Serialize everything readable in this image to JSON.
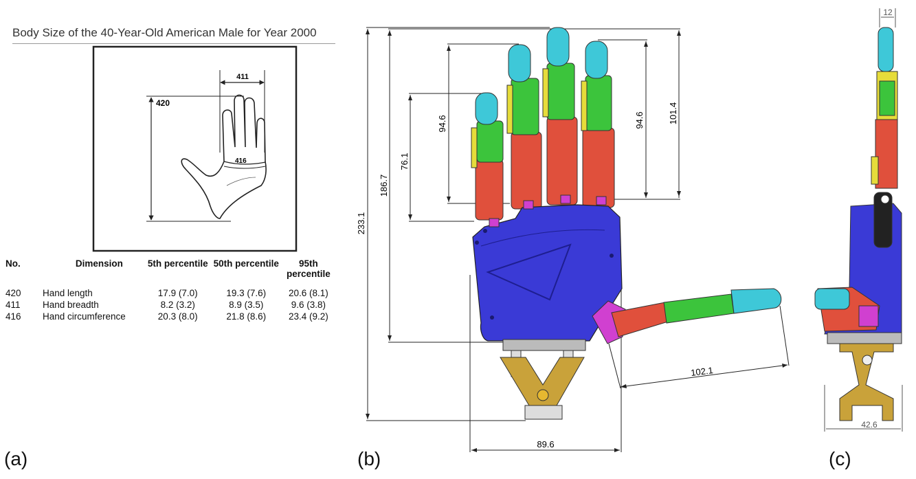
{
  "panel_a": {
    "label": "(a)",
    "title": "Body Size of the 40-Year-Old American Male for Year 2000",
    "sketch_labels": {
      "length": "420",
      "breadth": "411",
      "circumference": "416"
    },
    "table": {
      "headers": [
        "No.",
        "Dimension",
        "5th percentile",
        "50th percentile",
        "95th percentile"
      ],
      "rows": [
        {
          "no": "420",
          "dimension": "Hand length",
          "p5": "17.9 (7.0)",
          "p50": "19.3 (7.6)",
          "p95": "20.6 (8.1)"
        },
        {
          "no": "411",
          "dimension": "Hand breadth",
          "p5": "8.2 (3.2)",
          "p50": "8.9 (3.5)",
          "p95": "9.6 (3.8)"
        },
        {
          "no": "416",
          "dimension": "Hand circumference",
          "p5": "20.3 (8.0)",
          "p50": "21.8 (8.6)",
          "p95": "23.4 (9.2)"
        }
      ]
    }
  },
  "panel_b": {
    "label": "(b)",
    "dimensions": {
      "overall_height": "233.1",
      "palm_to_middle": "186.7",
      "little_finger": "76.1",
      "ring_finger": "94.6",
      "index_finger": "94.6",
      "middle_finger": "101.4",
      "thumb": "102.1",
      "palm_width": "89.6"
    }
  },
  "panel_c": {
    "label": "(c)",
    "dimensions": {
      "finger_thickness": "12",
      "base_width": "42.6"
    }
  },
  "colors": {
    "palm": "#3a3ad6",
    "proximal": "#e0503c",
    "middle": "#3cc43c",
    "tip": "#3ec8d8",
    "yellow": "#e6dc3a",
    "thumb_base": "#d040d0",
    "mount": "#c9a23a"
  }
}
